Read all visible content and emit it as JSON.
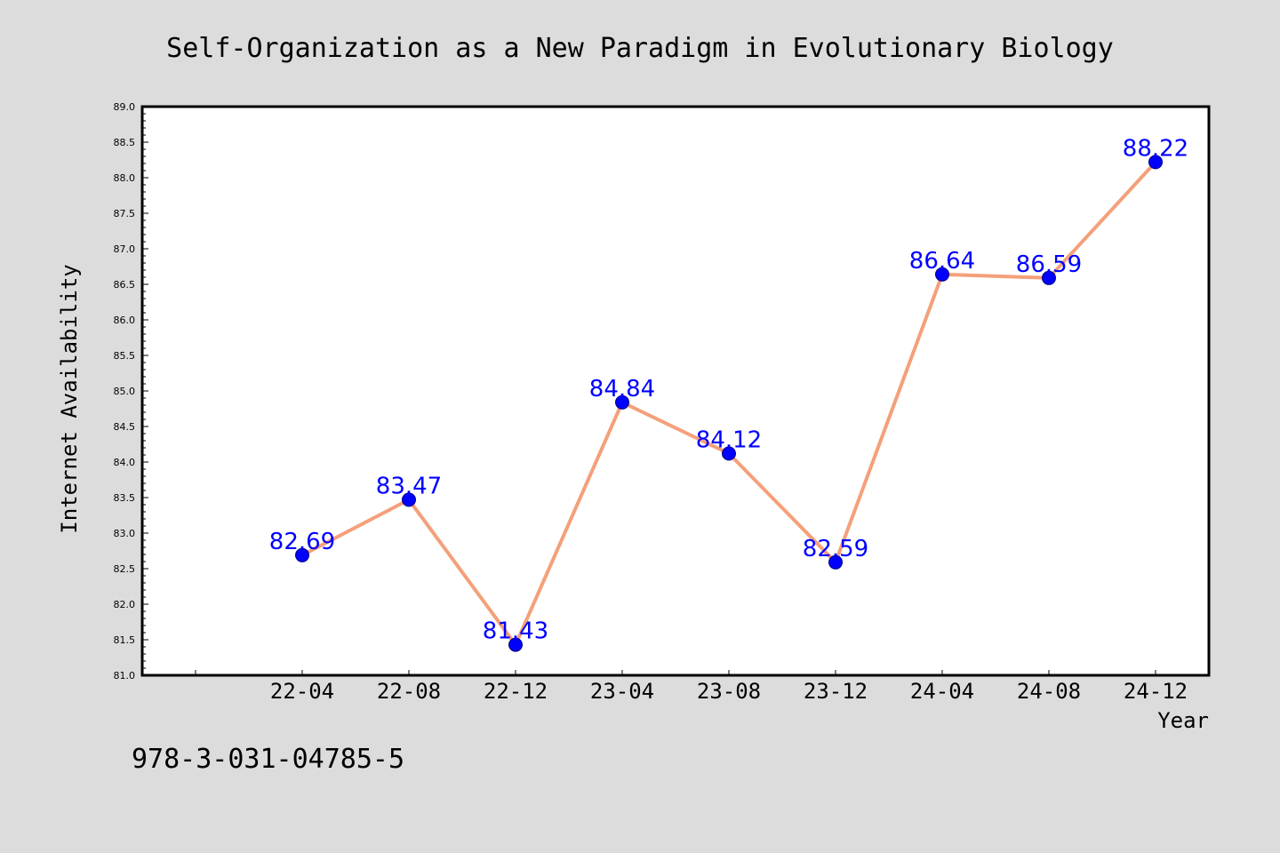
{
  "chart_data": {
    "type": "line",
    "title": "Self-Organization as a New Paradigm in Evolutionary Biology",
    "xlabel": "Year",
    "ylabel": "Internet Availability",
    "categories": [
      "22-04",
      "22-08",
      "22-12",
      "23-04",
      "23-08",
      "23-12",
      "24-04",
      "24-08",
      "24-12"
    ],
    "series": [
      {
        "values": [
          82.69,
          83.47,
          81.43,
          84.84,
          84.12,
          82.59,
          86.64,
          86.59,
          88.22
        ],
        "labels": [
          "82.69",
          "83.47",
          "81.43",
          "84.84",
          "84.12",
          "82.59",
          "86.64",
          "86.59",
          "88.22"
        ]
      }
    ],
    "ylim": [
      81.0,
      89.0
    ],
    "yticks": [
      "81.0",
      "81.5",
      "82.0",
      "82.5",
      "83.0",
      "83.5",
      "84.0",
      "84.5",
      "85.0",
      "85.5",
      "86.0",
      "86.5",
      "87.0",
      "87.5",
      "88.0",
      "88.5",
      "89.0"
    ],
    "grid": false,
    "legend": "none"
  },
  "footer_text": "978-3-031-04785-5",
  "colors": {
    "background": "#dcdcdc",
    "plot_area": "#ffffff",
    "line": "#f4a07a",
    "marker": "#0000ff",
    "data_label": "#0000ff"
  }
}
